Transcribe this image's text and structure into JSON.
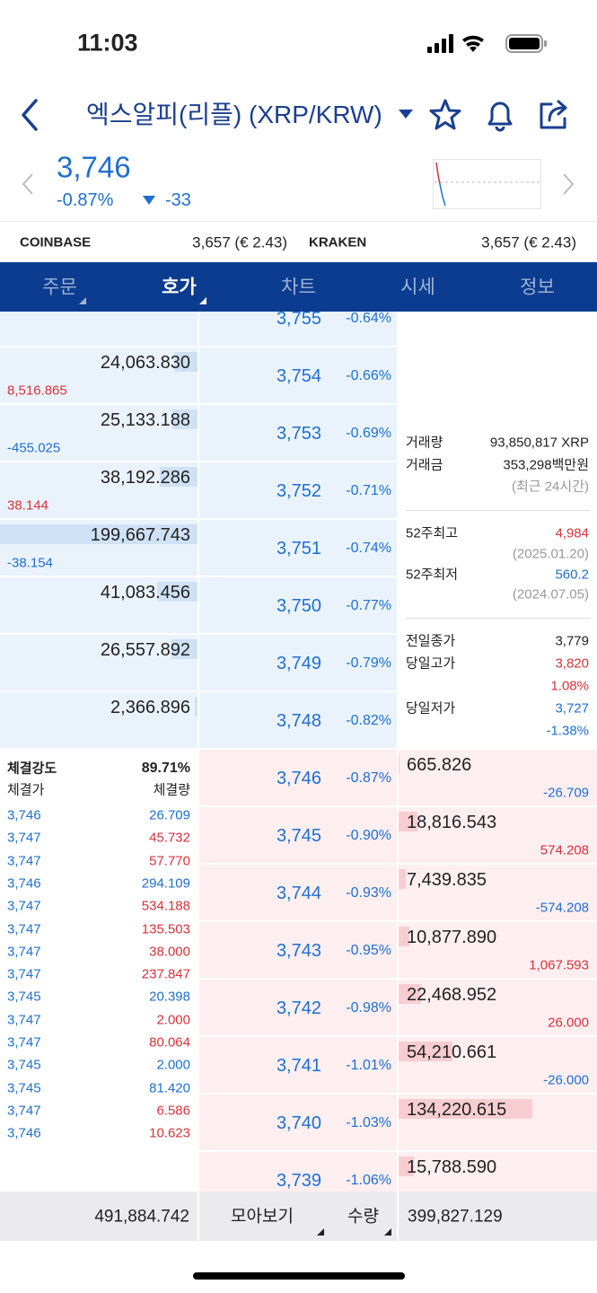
{
  "status_bar": {
    "time": "11:03"
  },
  "header": {
    "title": "엑스알피(리플) (XRP/KRW)"
  },
  "price": {
    "current": "3,746",
    "change_rate": "-0.87%",
    "change": "-33"
  },
  "exchanges": [
    {
      "name": "COINBASE",
      "price": "3,657 (€ 2.43)"
    },
    {
      "name": "KRAKEN",
      "price": "3,657 (€ 2.43)"
    }
  ],
  "tabs": {
    "items": [
      "주문",
      "호가",
      "차트",
      "시세",
      "정보"
    ],
    "active": 1
  },
  "order_book": {
    "sell": [
      {
        "price": "3,755",
        "rate": "-0.64%"
      },
      {
        "price": "3,754",
        "rate": "-0.66%",
        "quantity": "24,063.830",
        "change": "8,516.865"
      },
      {
        "price": "3,753",
        "rate": "-0.69%",
        "quantity": "25,133.188",
        "change": "-455.025"
      },
      {
        "price": "3,752",
        "rate": "-0.71%",
        "quantity": "38,192.286",
        "change": "38.144"
      },
      {
        "price": "3,751",
        "rate": "-0.74%",
        "quantity": "199,667.743",
        "change": "-38.154"
      },
      {
        "price": "3,750",
        "rate": "-0.77%",
        "quantity": "41,083.456"
      },
      {
        "price": "3,749",
        "rate": "-0.79%",
        "quantity": "26,557.892"
      },
      {
        "price": "3,748",
        "rate": "-0.82%",
        "quantity": "2,366.896"
      }
    ],
    "buy": [
      {
        "price": "3,746",
        "rate": "-0.87%",
        "quantity": "665.826",
        "change": "-26.709"
      },
      {
        "price": "3,745",
        "rate": "-0.90%",
        "quantity": "18,816.543",
        "change": "574.208"
      },
      {
        "price": "3,744",
        "rate": "-0.93%",
        "quantity": "7,439.835",
        "change": "-574.208"
      },
      {
        "price": "3,743",
        "rate": "-0.95%",
        "quantity": "10,877.890",
        "change": "1,067.593"
      },
      {
        "price": "3,742",
        "rate": "-0.98%",
        "quantity": "22,468.952",
        "change": "26.000"
      },
      {
        "price": "3,741",
        "rate": "-1.01%",
        "quantity": "54,210.661",
        "change": "-26.000"
      },
      {
        "price": "3,740",
        "rate": "-1.03%",
        "quantity": "134,220.615"
      },
      {
        "price": "3,739",
        "rate": "-1.06%",
        "quantity": "15,788.590"
      }
    ]
  },
  "info": [
    {
      "label": "거래량",
      "value": "93,850,817 XRP",
      "color": "#222222"
    },
    {
      "label": "거래금",
      "value": "353,298백만원",
      "color": "#222222"
    },
    {
      "value": "(최근 24시간)",
      "color": "#999999"
    },
    {
      "label": "52주최고",
      "value": "4,984",
      "color": "#d8333b"
    },
    {
      "value": "(2025.01.20)",
      "color": "#999999"
    },
    {
      "label": "52주최저",
      "value": "560.2",
      "color": "#1f6fd1"
    },
    {
      "value": "(2024.07.05)",
      "color": "#999999"
    },
    {
      "label": "전일종가",
      "value": "3,779",
      "color": "#222222"
    },
    {
      "label": "당일고가",
      "value": "3,820",
      "color": "#d8333b"
    },
    {
      "value": "1.08%",
      "color": "#d8333b"
    },
    {
      "label": "당일저가",
      "value": "3,727",
      "color": "#1f6fd1"
    },
    {
      "value": "-1.38%",
      "color": "#1f6fd1"
    }
  ],
  "trades": {
    "strength_label": "체결강도",
    "strength": "89.71%",
    "headers": [
      "체결가",
      "체결량"
    ],
    "rows": [
      {
        "price": "3,746",
        "volume": "26.709",
        "color": "#1f6fd1"
      },
      {
        "price": "3,747",
        "volume": "45.732",
        "color": "#d8333b"
      },
      {
        "price": "3,747",
        "volume": "57.770",
        "color": "#d8333b"
      },
      {
        "price": "3,746",
        "volume": "294.109",
        "color": "#1f6fd1"
      },
      {
        "price": "3,747",
        "volume": "534.188",
        "color": "#d8333b"
      },
      {
        "price": "3,747",
        "volume": "135.503",
        "color": "#d8333b"
      },
      {
        "price": "3,747",
        "volume": "38.000",
        "color": "#d8333b"
      },
      {
        "price": "3,747",
        "volume": "237.847",
        "color": "#d8333b"
      },
      {
        "price": "3,745",
        "volume": "20.398",
        "color": "#1f6fd1"
      },
      {
        "price": "3,747",
        "volume": "2.000",
        "color": "#d8333b"
      },
      {
        "price": "3,747",
        "volume": "80.064",
        "color": "#d8333b"
      },
      {
        "price": "3,745",
        "volume": "2.000",
        "color": "#1f6fd1"
      },
      {
        "price": "3,745",
        "volume": "81.420",
        "color": "#1f6fd1"
      },
      {
        "price": "3,747",
        "volume": "6.586",
        "color": "#d8333b"
      },
      {
        "price": "3,746",
        "volume": "10.623",
        "color": "#d8333b"
      }
    ]
  },
  "footer": {
    "sell_total": "491,884.742",
    "group_label": "모아보기",
    "unit_label": "수량",
    "buy_total": "399,827.129"
  }
}
